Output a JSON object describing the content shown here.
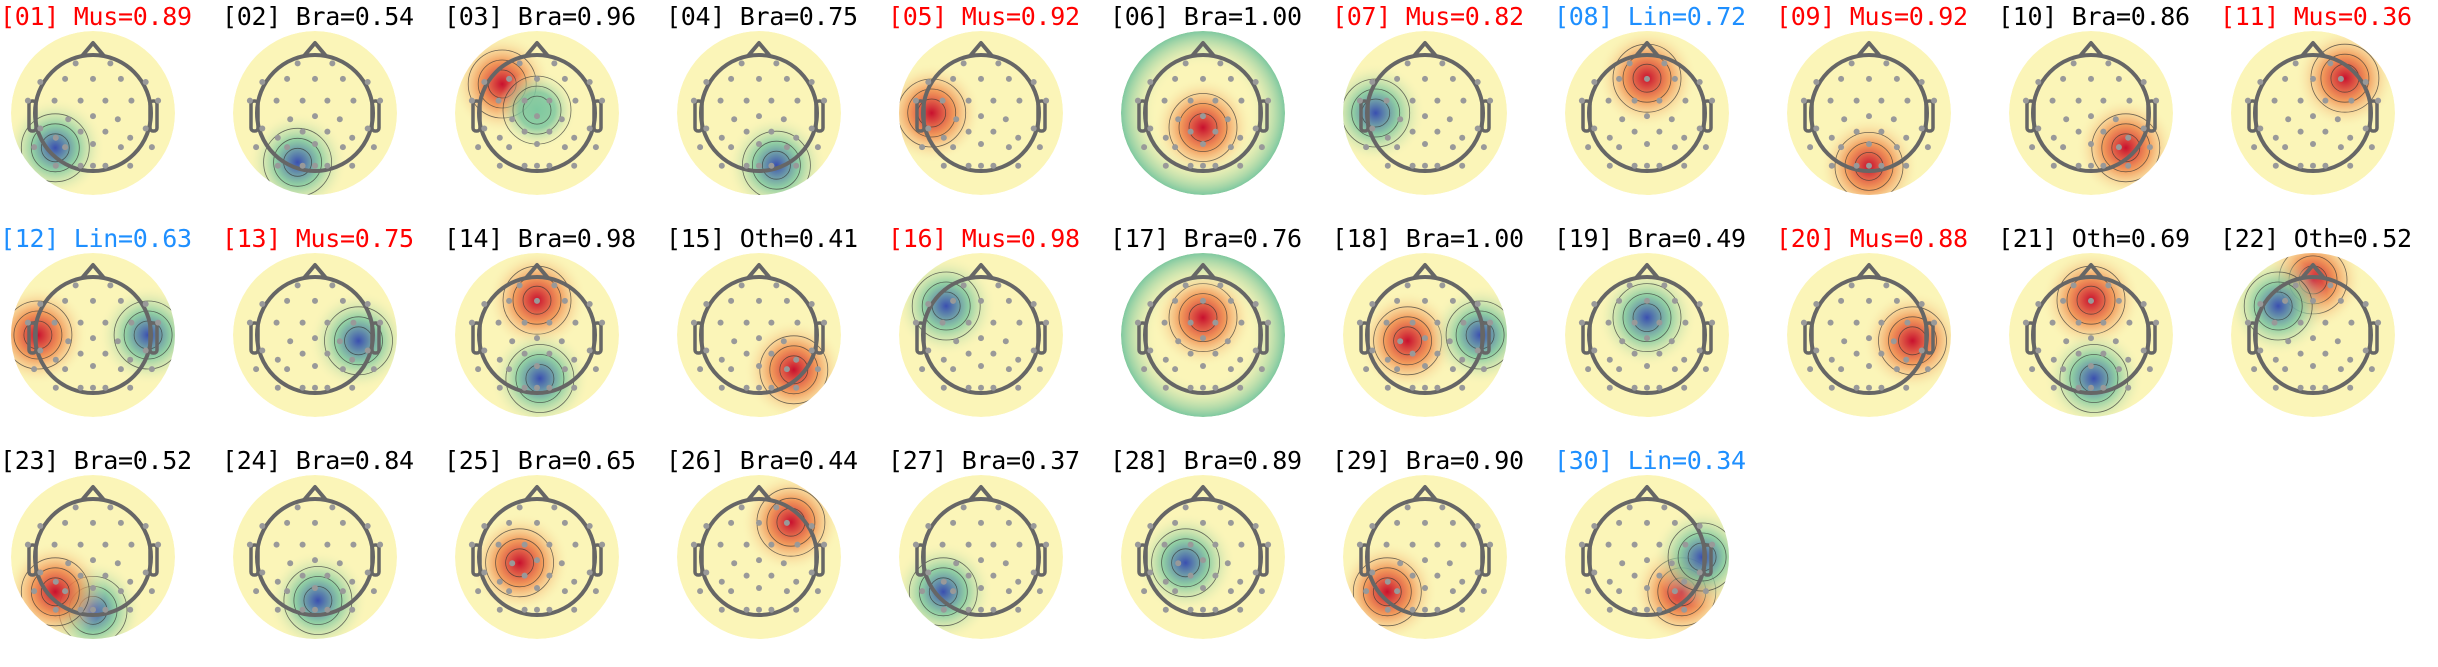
{
  "category_colors": {
    "Mus": "#ff0000",
    "Lin": "#1e8fff",
    "Bra": "#000000",
    "Oth": "#000000"
  },
  "colormap": {
    "positive": "#c8102e",
    "warm": "#f08a4b",
    "neutral": "#fbf5b8",
    "cool": "#7ec8a0",
    "negative": "#3a4fb0"
  },
  "components": [
    {
      "label": "[01] Mus=0.89",
      "cat": "Mus",
      "poles": [
        [
          "negative",
          "left-posterior"
        ]
      ]
    },
    {
      "label": "[02] Bra=0.54",
      "cat": "Bra",
      "poles": [
        [
          "negative",
          "posterior-left"
        ]
      ]
    },
    {
      "label": "[03] Bra=0.96",
      "cat": "Bra",
      "poles": [
        [
          "positive",
          "left-frontal"
        ],
        [
          "cool",
          "central"
        ]
      ]
    },
    {
      "label": "[04] Bra=0.75",
      "cat": "Bra",
      "poles": [
        [
          "negative",
          "posterior-right"
        ]
      ]
    },
    {
      "label": "[05] Mus=0.92",
      "cat": "Mus",
      "poles": [
        [
          "positive",
          "left-temporal"
        ]
      ]
    },
    {
      "label": "[06] Bra=1.00",
      "cat": "Bra",
      "poles": [
        [
          "positive",
          "center-posterior"
        ],
        [
          "cool",
          "rim"
        ]
      ]
    },
    {
      "label": "[07] Mus=0.82",
      "cat": "Mus",
      "poles": [
        [
          "negative",
          "left-temporal"
        ]
      ]
    },
    {
      "label": "[08] Lin=0.72",
      "cat": "Lin",
      "poles": [
        [
          "positive",
          "frontal"
        ]
      ]
    },
    {
      "label": "[09] Mus=0.92",
      "cat": "Mus",
      "poles": [
        [
          "positive",
          "occipital"
        ]
      ]
    },
    {
      "label": "[10] Bra=0.86",
      "cat": "Bra",
      "poles": [
        [
          "positive",
          "right-posterior"
        ]
      ]
    },
    {
      "label": "[11] Mus=0.36",
      "cat": "Mus",
      "poles": [
        [
          "positive",
          "right-frontal"
        ]
      ]
    },
    {
      "label": "[12] Lin=0.63",
      "cat": "Lin",
      "poles": [
        [
          "positive",
          "left"
        ],
        [
          "negative",
          "right"
        ]
      ]
    },
    {
      "label": "[13] Mus=0.75",
      "cat": "Mus",
      "poles": [
        [
          "negative",
          "right-temporal"
        ]
      ]
    },
    {
      "label": "[14] Bra=0.98",
      "cat": "Bra",
      "poles": [
        [
          "positive",
          "frontal"
        ],
        [
          "negative",
          "posterior"
        ]
      ]
    },
    {
      "label": "[15] Oth=0.41",
      "cat": "Oth",
      "poles": [
        [
          "positive",
          "right-posterior"
        ]
      ]
    },
    {
      "label": "[16] Mus=0.98",
      "cat": "Mus",
      "poles": [
        [
          "negative",
          "left-frontal"
        ]
      ]
    },
    {
      "label": "[17] Bra=0.76",
      "cat": "Bra",
      "poles": [
        [
          "positive",
          "frontal-central"
        ],
        [
          "cool",
          "rim"
        ]
      ]
    },
    {
      "label": "[18] Bra=1.00",
      "cat": "Bra",
      "poles": [
        [
          "positive",
          "left-central"
        ],
        [
          "negative",
          "right"
        ]
      ]
    },
    {
      "label": "[19] Bra=0.49",
      "cat": "Bra",
      "poles": [
        [
          "negative",
          "frontal-central"
        ]
      ]
    },
    {
      "label": "[20] Mus=0.88",
      "cat": "Mus",
      "poles": [
        [
          "positive",
          "right-temporal"
        ]
      ]
    },
    {
      "label": "[21] Oth=0.69",
      "cat": "Oth",
      "poles": [
        [
          "positive",
          "frontal"
        ],
        [
          "negative",
          "posterior"
        ]
      ]
    },
    {
      "label": "[22] Oth=0.52",
      "cat": "Oth",
      "poles": [
        [
          "positive",
          "frontal-top"
        ],
        [
          "negative",
          "left-frontal"
        ]
      ]
    },
    {
      "label": "[23] Bra=0.52",
      "cat": "Bra",
      "poles": [
        [
          "negative",
          "occipital"
        ],
        [
          "positive",
          "left-posterior"
        ]
      ]
    },
    {
      "label": "[24] Bra=0.84",
      "cat": "Bra",
      "poles": [
        [
          "negative",
          "posterior"
        ]
      ]
    },
    {
      "label": "[25] Bra=0.65",
      "cat": "Bra",
      "poles": [
        [
          "positive",
          "left-central"
        ]
      ]
    },
    {
      "label": "[26] Bra=0.44",
      "cat": "Bra",
      "poles": [
        [
          "positive",
          "right-frontal"
        ]
      ]
    },
    {
      "label": "[27] Bra=0.37",
      "cat": "Bra",
      "poles": [
        [
          "negative",
          "left-posterior"
        ]
      ]
    },
    {
      "label": "[28] Bra=0.89",
      "cat": "Bra",
      "poles": [
        [
          "negative",
          "left-central"
        ]
      ]
    },
    {
      "label": "[29] Bra=0.90",
      "cat": "Bra",
      "poles": [
        [
          "positive",
          "left-posterior"
        ]
      ]
    },
    {
      "label": "[30] Lin=0.34",
      "cat": "Lin",
      "poles": [
        [
          "positive",
          "right-posterior"
        ],
        [
          "negative",
          "right"
        ]
      ]
    }
  ]
}
